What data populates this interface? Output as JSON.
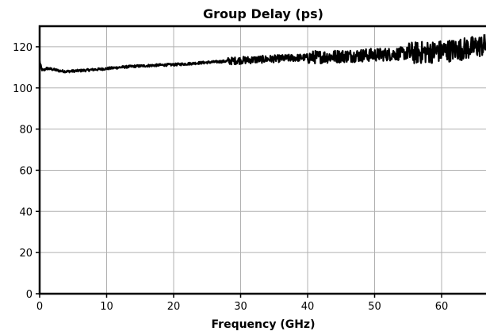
{
  "chart_data": {
    "type": "line",
    "title": "Group Delay (ps)",
    "xlabel": "Frequency (GHz)",
    "ylabel": "",
    "xlim": [
      0,
      67
    ],
    "ylim": [
      0,
      130
    ],
    "xticks": [
      0,
      10,
      20,
      30,
      40,
      50,
      60
    ],
    "yticks": [
      0,
      20,
      40,
      60,
      80,
      100,
      120
    ],
    "grid": true,
    "legend": "none",
    "series": [
      {
        "color": "#000000",
        "x": [
          0,
          0.3,
          0.6,
          1,
          2,
          3,
          4,
          5,
          6,
          7,
          8,
          9,
          10,
          12,
          14,
          16,
          18,
          20,
          22,
          24,
          26,
          28,
          30,
          32,
          34,
          36,
          38,
          40,
          42,
          44,
          46,
          48,
          50,
          52,
          54,
          56,
          58,
          60,
          62,
          64,
          66,
          67
        ],
        "y": [
          113,
          109,
          108.5,
          109.5,
          109,
          108.3,
          108,
          108.2,
          108.4,
          108.6,
          108.9,
          109.1,
          109.4,
          110,
          110.5,
          110.8,
          111.1,
          111.3,
          111.7,
          112.2,
          112.6,
          113,
          113.4,
          113.7,
          114,
          114.3,
          114.6,
          114.8,
          115.1,
          115.3,
          115.6,
          115.8,
          116.1,
          116.3,
          116.7,
          117,
          117.4,
          117.8,
          118.5,
          119.3,
          120.5,
          121
        ]
      }
    ]
  }
}
